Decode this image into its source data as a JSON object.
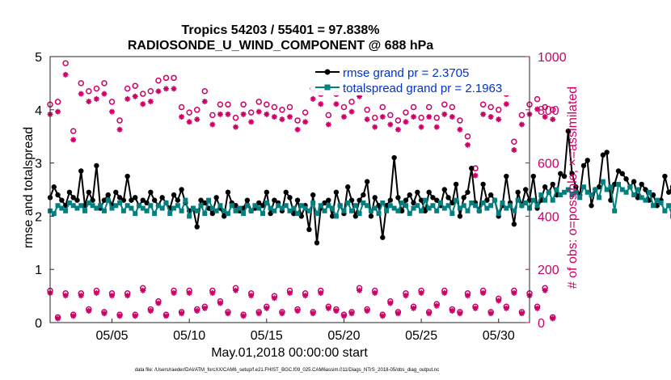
{
  "chart_data": {
    "type": "line",
    "title_line1": "Tropics 54203 / 55401 = 97.838%",
    "title_line2": "RADIOSONDE_U_WIND_COMPONENT @ 688 hPa",
    "xlabel": "May.01,2018 00:00:00 start",
    "ylabel_left": "rmse and totalspread",
    "ylabel_right": "# of obs: o=possible; ×=assimilated",
    "footer": "data file: /Users/raeder/DAI/ATM_forcXX/CAM6_setup/f.e21.FHIST_BGC.f09_025.CAM6assim.011/Diags_NTrS_2018-05/obs_diag_output.nc",
    "xlim": [
      1,
      32
    ],
    "xticks": [
      5,
      10,
      15,
      20,
      25,
      30
    ],
    "xtick_labels": [
      "05/05",
      "05/10",
      "05/15",
      "05/20",
      "05/25",
      "05/30"
    ],
    "ylim_left": [
      0,
      5
    ],
    "yticks_left": [
      0,
      1,
      2,
      3,
      4,
      5
    ],
    "ylim_right": [
      0,
      1000
    ],
    "yticks_right": [
      0,
      200,
      400,
      600,
      800,
      1000
    ],
    "colors": {
      "rmse": "#000000",
      "spread": "#008080",
      "obs": "#cc0066",
      "legend_text": "#0033cc"
    },
    "legend": [
      "rmse grand pr = 2.3705",
      "totalspread grand pr = 2.1963"
    ],
    "series": [
      {
        "name": "rmse",
        "axis": "left",
        "x_start": 1.0,
        "x_step": 0.25,
        "values": [
          2.35,
          2.55,
          2.4,
          2.3,
          2.2,
          2.45,
          2.35,
          2.3,
          2.85,
          2.2,
          2.45,
          2.3,
          2.95,
          2.15,
          2.3,
          2.4,
          2.2,
          2.45,
          2.35,
          2.3,
          2.75,
          2.3,
          2.35,
          2.2,
          2.3,
          2.25,
          2.45,
          2.3,
          2.2,
          2.35,
          2.25,
          2.15,
          2.4,
          2.3,
          2.5,
          2.25,
          2.1,
          2.15,
          1.8,
          2.3,
          2.25,
          2.15,
          2.05,
          2.35,
          2.15,
          2.0,
          2.45,
          2.25,
          2.2,
          2.1,
          2.15,
          2.3,
          2.1,
          2.15,
          2.25,
          2.2,
          2.45,
          2.05,
          2.3,
          2.25,
          2.1,
          2.45,
          2.35,
          2.05,
          2.3,
          2.0,
          2.2,
          1.75,
          2.4,
          1.5,
          2.15,
          2.25,
          2.3,
          2.0,
          2.45,
          2.2,
          2.05,
          2.55,
          2.3,
          2.0,
          2.3,
          2.4,
          2.65,
          2.0,
          2.35,
          2.2,
          1.6,
          2.2,
          2.3,
          3.1,
          2.35,
          2.1,
          2.3,
          2.4,
          2.25,
          2.45,
          2.3,
          2.1,
          2.45,
          2.35,
          2.3,
          2.2,
          2.5,
          2.35,
          2.25,
          2.6,
          2.0,
          2.35,
          2.45,
          2.9,
          2.25,
          2.1,
          2.6,
          2.3,
          2.4,
          2.3,
          2.0,
          2.2,
          2.75,
          2.25,
          1.85,
          2.45,
          2.2,
          2.5,
          2.3,
          2.75,
          2.15,
          2.3,
          2.55,
          2.45,
          2.6,
          2.4,
          2.8,
          2.75,
          3.6,
          2.8,
          2.55,
          2.4,
          2.95,
          3.05,
          2.2,
          2.5,
          2.55,
          3.15,
          3.2,
          2.3,
          2.6,
          2.85,
          2.8,
          2.7,
          2.55,
          2.65,
          2.35,
          2.6,
          2.5,
          2.3,
          2.4,
          2.2,
          2.3,
          2.75,
          2.45,
          2.55,
          2.55
        ]
      },
      {
        "name": "totalspread",
        "axis": "left",
        "x_start": 1.0,
        "x_step": 0.25,
        "values": [
          2.1,
          2.05,
          2.2,
          2.15,
          2.1,
          2.25,
          2.2,
          2.15,
          2.2,
          2.1,
          2.25,
          2.2,
          2.15,
          2.2,
          2.1,
          2.3,
          2.15,
          2.2,
          2.25,
          2.1,
          2.2,
          2.15,
          2.05,
          2.2,
          2.15,
          2.1,
          2.2,
          2.05,
          2.2,
          2.15,
          2.25,
          2.05,
          2.15,
          2.2,
          2.1,
          2.3,
          2.0,
          2.15,
          2.1,
          2.2,
          2.05,
          2.3,
          2.15,
          2.1,
          2.2,
          2.1,
          2.05,
          2.2,
          2.1,
          2.15,
          2.05,
          2.2,
          2.1,
          2.2,
          2.15,
          2.05,
          2.25,
          2.15,
          2.1,
          2.2,
          2.15,
          2.2,
          2.1,
          2.15,
          2.05,
          2.2,
          2.15,
          2.1,
          2.25,
          2.05,
          2.2,
          2.1,
          2.2,
          2.15,
          2.0,
          2.2,
          2.1,
          2.25,
          2.1,
          2.2,
          2.05,
          2.25,
          2.2,
          2.1,
          2.15,
          2.05,
          2.25,
          2.1,
          2.2,
          2.15,
          2.1,
          2.25,
          2.2,
          2.05,
          2.15,
          2.2,
          2.1,
          2.3,
          2.15,
          2.2,
          2.1,
          2.25,
          2.15,
          2.2,
          2.05,
          2.3,
          2.15,
          2.2,
          2.1,
          2.25,
          2.2,
          2.1,
          2.25,
          2.15,
          2.2,
          2.3,
          2.05,
          2.25,
          2.15,
          2.2,
          2.1,
          2.3,
          2.2,
          2.25,
          2.15,
          2.3,
          2.2,
          2.4,
          2.3,
          2.45,
          2.3,
          2.5,
          2.4,
          2.45,
          2.5,
          2.4,
          2.45,
          2.35,
          2.55,
          2.45,
          2.4,
          2.5,
          2.35,
          2.65,
          2.5,
          2.55,
          2.1,
          2.6,
          2.5,
          2.45,
          2.55,
          2.4,
          2.5,
          2.35,
          2.3,
          2.45,
          2.2,
          2.3,
          2.25,
          2.1,
          2.2,
          2.0
        ]
      },
      {
        "name": "obs-upper (possible o / assimilated ×)",
        "axis": "right",
        "x_start": 1.0,
        "x_step": 0.5,
        "possible": [
          820,
          830,
          975,
          720,
          900,
          870,
          880,
          900,
          830,
          760,
          880,
          890,
          860,
          870,
          910,
          920,
          920,
          810,
          790,
          800,
          870,
          780,
          820,
          820,
          770,
          820,
          790,
          830,
          820,
          810,
          800,
          810,
          760,
          790,
          880,
          860,
          780,
          860,
          810,
          830,
          890,
          800,
          770,
          810,
          780,
          760,
          790,
          810,
          770,
          810,
          770,
          820,
          810,
          760,
          700,
          580,
          820,
          810,
          800,
          860,
          680,
          780,
          820,
          840,
          810,
          800
        ]
      },
      {
        "name": "obs-lower (possible o / assimilated ×)",
        "axis": "right",
        "x_start": 1.0,
        "x_step": 0.5,
        "possible": [
          120,
          20,
          110,
          30,
          110,
          50,
          120,
          40,
          110,
          30,
          110,
          30,
          130,
          50,
          80,
          30,
          120,
          40,
          120,
          50,
          60,
          120,
          80,
          40,
          130,
          30,
          110,
          40,
          60,
          100,
          40,
          120,
          50,
          110,
          40,
          120,
          60,
          50,
          30,
          40,
          130,
          50,
          120,
          30,
          80,
          40,
          110,
          60,
          120,
          40,
          70,
          120,
          50,
          40,
          110,
          60,
          120,
          40,
          90,
          60,
          120,
          40,
          110,
          60,
          130,
          20
        ]
      }
    ]
  }
}
